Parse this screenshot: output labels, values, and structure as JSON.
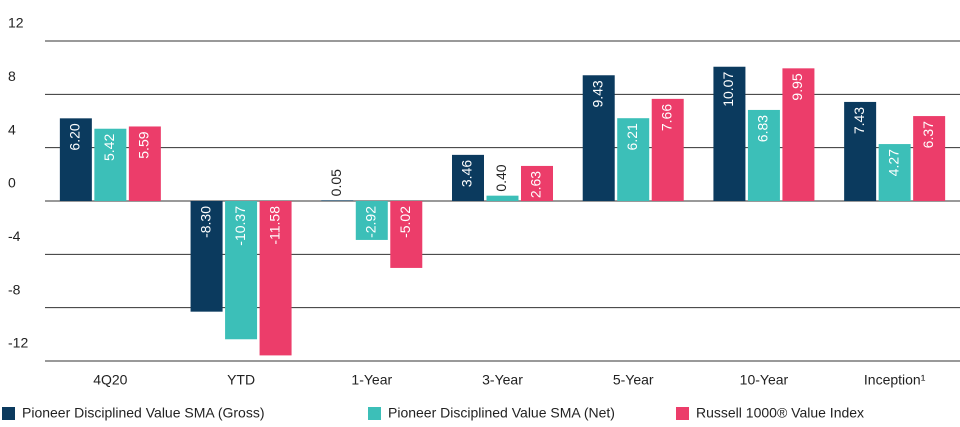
{
  "chart_data": {
    "type": "bar",
    "categories": [
      "4Q20",
      "YTD",
      "1-Year",
      "3-Year",
      "5-Year",
      "10-Year",
      "Inception¹"
    ],
    "series": [
      {
        "name": "Pioneer Disciplined Value SMA (Gross)",
        "color": "#0b3a5e",
        "values": [
          6.2,
          -8.3,
          0.05,
          3.46,
          9.43,
          10.07,
          7.43
        ],
        "value_labels": [
          "6.20",
          "-8.30",
          "0.05",
          "3.46",
          "9.43",
          "10.07",
          "7.43"
        ]
      },
      {
        "name": "Pioneer Disciplined Value SMA (Net)",
        "color": "#3cbfb8",
        "values": [
          5.42,
          -10.37,
          -2.92,
          0.4,
          6.21,
          6.83,
          4.27
        ],
        "value_labels": [
          "5.42",
          "-10.37",
          "-2.92",
          "0.40",
          "6.21",
          "6.83",
          "4.27"
        ]
      },
      {
        "name": "Russell 1000® Value Index",
        "color": "#ec3d6a",
        "values": [
          5.59,
          -11.58,
          -5.02,
          2.63,
          7.66,
          9.95,
          6.37
        ],
        "value_labels": [
          "5.59",
          "-11.58",
          "-5.02",
          "2.63",
          "7.66",
          "9.95",
          "6.37"
        ]
      }
    ],
    "ylim": [
      -12,
      12
    ],
    "yticks": [
      12,
      8,
      4,
      0,
      -4,
      -8,
      -12
    ],
    "grid": true,
    "legend": "bottom"
  }
}
